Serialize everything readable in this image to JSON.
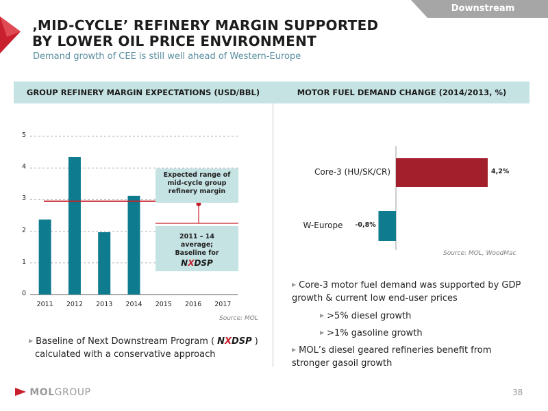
{
  "header": {
    "section_tab": "Downstream",
    "title": "‚MID-CYCLE’ REFINERY MARGIN SUPPORTED BY LOWER OIL PRICE ENVIRONMENT",
    "subtitle": "Demand growth of CEE is still well ahead of Western-Europe",
    "left_heading": "GROUP REFINERY MARGIN EXPECTATIONS (USD/BBL)",
    "right_heading": "MOTOR FUEL DEMAND CHANGE (2014/2013, %)"
  },
  "colors": {
    "teal": "#0e7b8f",
    "red": "#c8202c",
    "dark_red": "#a31f2b",
    "tab_gray": "#a6a6a6",
    "light_teal": "#c6e3e4"
  },
  "chart_data": [
    {
      "type": "bar",
      "categories": [
        "2011",
        "2012",
        "2013",
        "2014",
        "2015",
        "2016",
        "2017"
      ],
      "values": [
        2.37,
        4.35,
        1.97,
        3.12,
        null,
        null,
        null
      ],
      "ylim": [
        0,
        5
      ],
      "yticks": [
        "0",
        "1",
        "2",
        "3",
        "4",
        "5"
      ],
      "grid": true,
      "baseline_value": 2.95,
      "source": "Source: MOL",
      "annotations": {
        "mid_cycle_label": "Expected range of mid-cycle group refinery margin",
        "baseline_label": "2011 – 14 average; Baseline for"
      }
    },
    {
      "type": "bar",
      "orientation": "horizontal",
      "categories": [
        "Core-3 (HU/SK/CR)",
        "W-Europe"
      ],
      "values": [
        4.2,
        -0.8
      ],
      "value_labels": [
        "4,2%",
        "-0,8%"
      ],
      "source": "Source: MOL, WoodMac"
    }
  ],
  "left_bullets": {
    "baseline_prefix": "Baseline of Next Downstream Program (",
    "baseline_suffix": ")",
    "baseline_line2": "calculated with a conservative approach"
  },
  "right_bullets": {
    "b1": "Core-3 motor fuel demand was supported by GDP growth & current low end-user prices",
    "sub1": ">5% diesel growth",
    "sub2": ">1% gasoline growth",
    "b2": "MOL’s diesel geared refineries benefit from stronger gasoil growth"
  },
  "program_logo": {
    "n": "N",
    "x": "X",
    "dsp": "DSP"
  },
  "footer": {
    "logo_mol": "MOL",
    "logo_group": "GROUP",
    "page_number": "38"
  }
}
